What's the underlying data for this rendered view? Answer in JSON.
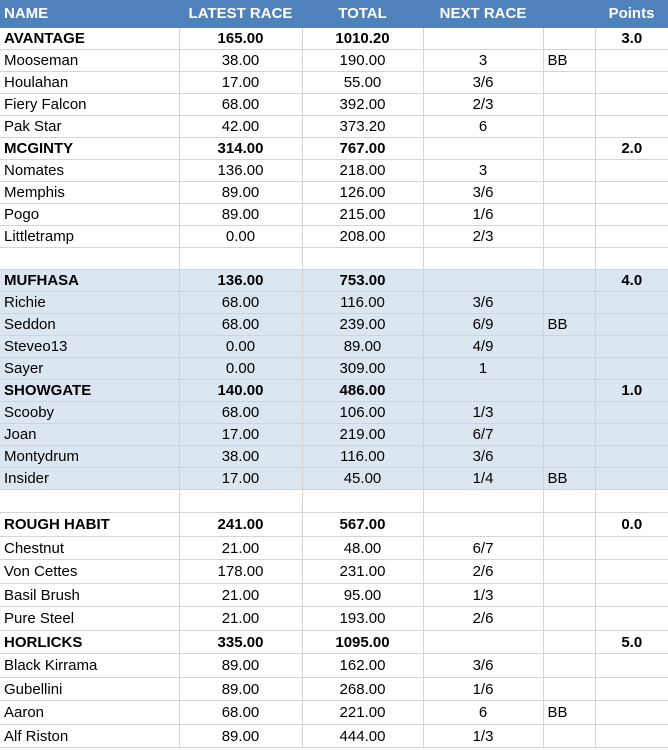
{
  "header": {
    "name": "NAME",
    "latest": "LATEST RACE",
    "total": "TOTAL",
    "next": "NEXT RACE",
    "bb": "",
    "points": "Points"
  },
  "rows": [
    {
      "type": "team",
      "shaded": false,
      "h": 22,
      "name": "AVANTAGE",
      "latest": "165.00",
      "total": "1010.20",
      "next": "",
      "bb": "",
      "points": "3.0"
    },
    {
      "type": "horse",
      "shaded": false,
      "h": 22,
      "name": "Mooseman",
      "latest": "38.00",
      "total": "190.00",
      "next": "3",
      "bb": "BB",
      "points": ""
    },
    {
      "type": "horse",
      "shaded": false,
      "h": 22,
      "name": "Houlahan",
      "latest": "17.00",
      "total": "55.00",
      "next": "3/6",
      "bb": "",
      "points": ""
    },
    {
      "type": "horse",
      "shaded": false,
      "h": 22,
      "name": "Fiery Falcon",
      "latest": "68.00",
      "total": "392.00",
      "next": "2/3",
      "bb": "",
      "points": ""
    },
    {
      "type": "horse",
      "shaded": false,
      "h": 22,
      "name": "Pak Star",
      "latest": "42.00",
      "total": "373.20",
      "next": "6",
      "bb": "",
      "points": ""
    },
    {
      "type": "team",
      "shaded": false,
      "h": 22,
      "name": "MCGINTY",
      "latest": "314.00",
      "total": "767.00",
      "next": "",
      "bb": "",
      "points": "2.0"
    },
    {
      "type": "horse",
      "shaded": false,
      "h": 22,
      "name": "Nomates",
      "latest": "136.00",
      "total": "218.00",
      "next": "3",
      "bb": "",
      "points": ""
    },
    {
      "type": "horse",
      "shaded": false,
      "h": 22,
      "name": "Memphis",
      "latest": "89.00",
      "total": "126.00",
      "next": "3/6",
      "bb": "",
      "points": ""
    },
    {
      "type": "horse",
      "shaded": false,
      "h": 22,
      "name": "Pogo",
      "latest": "89.00",
      "total": "215.00",
      "next": "1/6",
      "bb": "",
      "points": ""
    },
    {
      "type": "horse",
      "shaded": false,
      "h": 22,
      "name": "Littletramp",
      "latest": "0.00",
      "total": "208.00",
      "next": "2/3",
      "bb": "",
      "points": ""
    },
    {
      "type": "blank",
      "shaded": false,
      "h": 22,
      "name": "",
      "latest": "",
      "total": "",
      "next": "",
      "bb": "",
      "points": ""
    },
    {
      "type": "team",
      "shaded": true,
      "h": 22,
      "name": "MUFHASA",
      "latest": "136.00",
      "total": "753.00",
      "next": "",
      "bb": "",
      "points": "4.0"
    },
    {
      "type": "horse",
      "shaded": true,
      "h": 22,
      "name": "Richie",
      "latest": "68.00",
      "total": "116.00",
      "next": "3/6",
      "bb": "",
      "points": ""
    },
    {
      "type": "horse",
      "shaded": true,
      "h": 22,
      "name": "Seddon",
      "latest": "68.00",
      "total": "239.00",
      "next": "6/9",
      "bb": "BB",
      "points": ""
    },
    {
      "type": "horse",
      "shaded": true,
      "h": 22,
      "name": "Steveo13",
      "latest": "0.00",
      "total": "89.00",
      "next": "4/9",
      "bb": "",
      "points": ""
    },
    {
      "type": "horse",
      "shaded": true,
      "h": 22,
      "name": "Sayer",
      "latest": "0.00",
      "total": "309.00",
      "next": "1",
      "bb": "",
      "points": ""
    },
    {
      "type": "team",
      "shaded": true,
      "h": 22,
      "name": "SHOWGATE",
      "latest": "140.00",
      "total": "486.00",
      "next": "",
      "bb": "",
      "points": "1.0"
    },
    {
      "type": "horse",
      "shaded": true,
      "h": 22,
      "name": "Scooby",
      "latest": "68.00",
      "total": "106.00",
      "next": "1/3",
      "bb": "",
      "points": ""
    },
    {
      "type": "horse",
      "shaded": true,
      "h": 22,
      "name": "Joan",
      "latest": "17.00",
      "total": "219.00",
      "next": "6/7",
      "bb": "",
      "points": ""
    },
    {
      "type": "horse",
      "shaded": true,
      "h": 22,
      "name": "Montydrum",
      "latest": "38.00",
      "total": "116.00",
      "next": "3/6",
      "bb": "",
      "points": ""
    },
    {
      "type": "horse",
      "shaded": true,
      "h": 22,
      "name": "Insider",
      "latest": "17.00",
      "total": "45.00",
      "next": "1/4",
      "bb": "BB",
      "points": ""
    },
    {
      "type": "blank",
      "shaded": false,
      "h": 23,
      "name": "",
      "latest": "",
      "total": "",
      "next": "",
      "bb": "",
      "points": ""
    },
    {
      "type": "team",
      "shaded": false,
      "h": 24,
      "name": "ROUGH HABIT",
      "latest": "241.00",
      "total": "567.00",
      "next": "",
      "bb": "",
      "points": "0.0"
    },
    {
      "type": "horse",
      "shaded": false,
      "h": 23,
      "name": "Chestnut",
      "latest": "21.00",
      "total": "48.00",
      "next": "6/7",
      "bb": "",
      "points": ""
    },
    {
      "type": "horse",
      "shaded": false,
      "h": 24,
      "name": "Von Cettes",
      "latest": "178.00",
      "total": "231.00",
      "next": "2/6",
      "bb": "",
      "points": ""
    },
    {
      "type": "horse",
      "shaded": false,
      "h": 23,
      "name": "Basil Brush",
      "latest": "21.00",
      "total": "95.00",
      "next": "1/3",
      "bb": "",
      "points": ""
    },
    {
      "type": "horse",
      "shaded": false,
      "h": 24,
      "name": "Pure Steel",
      "latest": "21.00",
      "total": "193.00",
      "next": "2/6",
      "bb": "",
      "points": ""
    },
    {
      "type": "team",
      "shaded": false,
      "h": 23,
      "name": "HORLICKS",
      "latest": "335.00",
      "total": "1095.00",
      "next": "",
      "bb": "",
      "points": "5.0"
    },
    {
      "type": "horse",
      "shaded": false,
      "h": 24,
      "name": "Black Kirrama",
      "latest": "89.00",
      "total": "162.00",
      "next": "3/6",
      "bb": "",
      "points": ""
    },
    {
      "type": "horse",
      "shaded": false,
      "h": 23,
      "name": "Gubellini",
      "latest": "89.00",
      "total": "268.00",
      "next": "1/6",
      "bb": "",
      "points": ""
    },
    {
      "type": "horse",
      "shaded": false,
      "h": 24,
      "name": "Aaron",
      "latest": "68.00",
      "total": "221.00",
      "next": "6",
      "bb": "BB",
      "points": ""
    },
    {
      "type": "horse",
      "shaded": false,
      "h": 23,
      "name": "Alf Riston",
      "latest": "89.00",
      "total": "444.00",
      "next": "1/3",
      "bb": "",
      "points": ""
    }
  ]
}
